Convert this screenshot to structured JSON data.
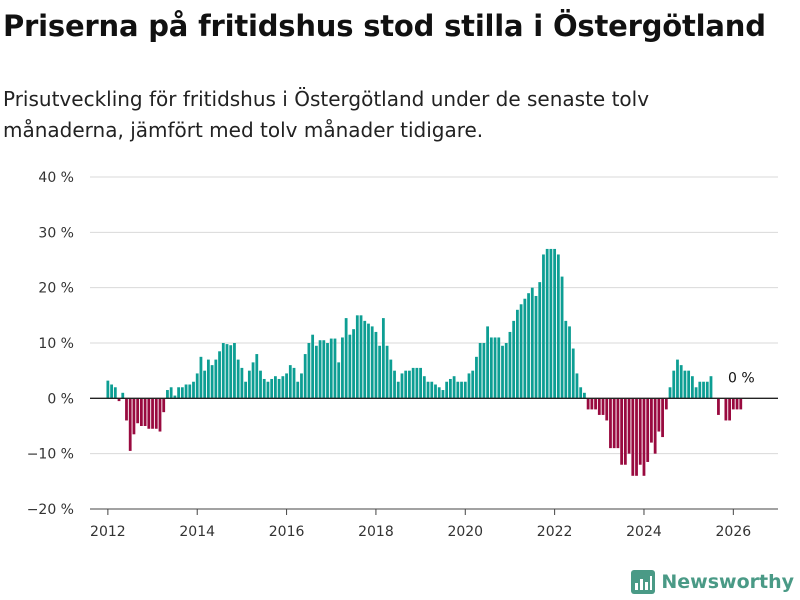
{
  "header": {
    "title": "Priserna på fritidshus stod stilla i Östergötland",
    "subtitle": "Prisutveckling för fritidshus i Östergötland under de senaste tolv månaderna, jämfört med tolv månader tidigare."
  },
  "brand": {
    "name": "Newsworthy",
    "icon": "newsworthy-logo-icon"
  },
  "colors": {
    "positive": "#0d9e93",
    "negative": "#990a3f",
    "grid": "#d9d9d9",
    "zero_line": "#222222"
  },
  "chart_data": {
    "type": "bar",
    "title": "Priserna på fritidshus stod stilla i Östergötland",
    "xlabel": "",
    "ylabel": "",
    "ylim": [
      -20,
      40
    ],
    "xlim": [
      2011.6,
      2027.0
    ],
    "y_ticks": [
      -20,
      -10,
      0,
      10,
      20,
      30,
      40
    ],
    "y_tick_labels": [
      "−20 %",
      "−10 %",
      "0 %",
      "10 %",
      "20 %",
      "30 %",
      "40 %"
    ],
    "x_ticks": [
      2012,
      2014,
      2016,
      2018,
      2020,
      2022,
      2024,
      2026
    ],
    "x_tick_labels": [
      "2012",
      "2014",
      "2016",
      "2018",
      "2020",
      "2022",
      "2024",
      "2026"
    ],
    "grid": true,
    "bar_width_months": 0.75,
    "annotation": {
      "text": "0 %",
      "x": 2026.0,
      "y": 3.8
    },
    "start_year": 2012.0,
    "step_months": 1,
    "values": [
      3.2,
      2.5,
      2,
      -0.5,
      1,
      -4,
      -9.5,
      -6.5,
      -4.5,
      -5,
      -5,
      -5.5,
      -5.5,
      -5.5,
      -6,
      -2.5,
      1.5,
      2,
      0.5,
      2,
      2,
      2.5,
      2.5,
      3,
      4.5,
      7.5,
      5,
      7,
      6,
      7,
      8.5,
      10,
      9.8,
      9.6,
      10,
      7,
      5.5,
      3,
      5,
      6.5,
      8,
      5,
      3.5,
      3,
      3.5,
      4,
      3.5,
      4,
      4.5,
      6,
      5.5,
      3,
      4.5,
      8,
      10,
      11.5,
      9.5,
      10.5,
      10.5,
      10,
      10.8,
      10.8,
      6.5,
      11,
      14.5,
      11.5,
      12.5,
      15,
      15,
      14,
      13.5,
      13,
      12,
      9.5,
      14.5,
      9.5,
      7,
      5,
      3,
      4.5,
      5,
      5,
      5.5,
      5.5,
      5.5,
      4,
      3,
      3,
      2.5,
      2,
      1.5,
      3,
      3.5,
      4,
      3,
      3,
      3,
      4.5,
      5,
      7.5,
      10,
      10,
      13,
      11,
      11,
      11,
      9.5,
      10,
      12,
      14,
      16,
      17,
      18,
      19,
      20,
      18.5,
      21,
      26,
      27,
      27,
      27,
      26,
      22,
      14,
      13,
      9,
      4.5,
      2,
      1,
      -2,
      -2,
      -2,
      -3,
      -3,
      -4,
      -9,
      -9,
      -9,
      -12,
      -12,
      -10,
      -14,
      -14,
      -12,
      -14,
      -11.5,
      -8,
      -10,
      -6,
      -7,
      -2,
      2,
      5,
      7,
      6,
      5,
      5,
      4,
      2,
      3,
      3,
      3,
      4,
      null,
      -3,
      null,
      -4,
      -4,
      -2,
      -2,
      -2
    ]
  }
}
